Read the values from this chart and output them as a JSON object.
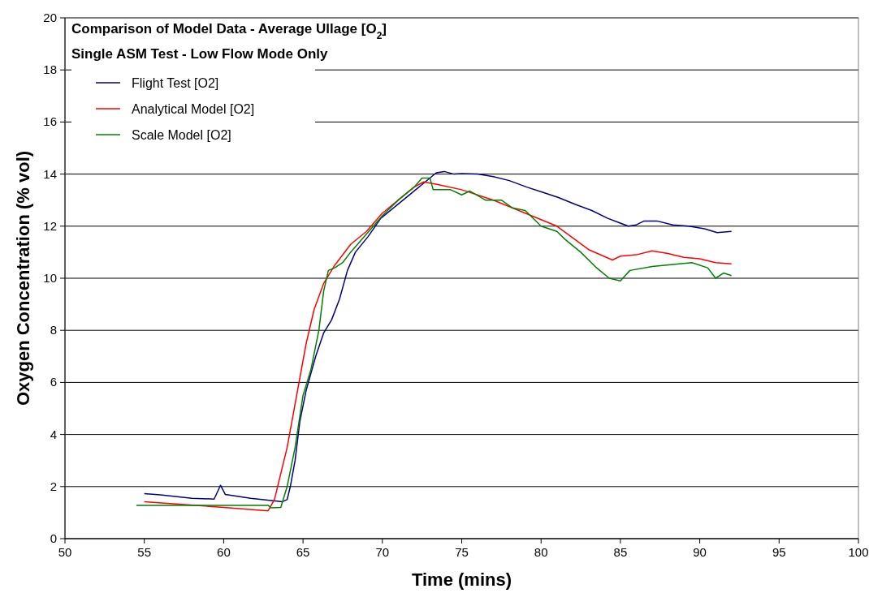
{
  "chart_data": {
    "type": "line",
    "title": "Comparison of Model Data - Average Ullage [O$_{2}$]",
    "subtitle": "Single ASM Test - Low Flow Mode Only",
    "xlabel": "Time (mins)",
    "ylabel": "Oxygen Concentration (% vol)",
    "xlim": [
      50,
      100
    ],
    "xticks": [
      50,
      55,
      60,
      65,
      70,
      75,
      80,
      85,
      90,
      95,
      100
    ],
    "ylim": [
      0,
      20
    ],
    "yticks": [
      0,
      2,
      4,
      6,
      8,
      10,
      12,
      14,
      16,
      18,
      20
    ],
    "grid": "y",
    "legend": "top left",
    "line_style": "solid",
    "marker": "none",
    "series": [
      {
        "name": "Flight Test [O2]",
        "color": "#000080",
        "x": [
          55,
          56,
          58,
          59.4,
          59.8,
          60.1,
          61.7,
          63.7,
          64,
          64.2,
          64.5,
          64.8,
          65.2,
          65.8,
          66.3,
          66.8,
          67.3,
          67.8,
          68.3,
          69.1,
          69.9,
          70.9,
          71.9,
          72.7,
          73.4,
          73.9,
          74.5,
          75,
          76,
          77,
          78,
          79.1,
          80.1,
          81.1,
          82.1,
          83.2,
          84.2,
          85.5,
          86,
          86.5,
          87.3,
          88.3,
          89.3,
          90.3,
          91.1,
          92
        ],
        "values": [
          1.73,
          1.68,
          1.55,
          1.52,
          2.05,
          1.7,
          1.55,
          1.42,
          1.5,
          2,
          3,
          4.5,
          5.7,
          7,
          7.9,
          8.4,
          9.2,
          10.3,
          11,
          11.6,
          12.3,
          12.8,
          13.3,
          13.7,
          14.05,
          14.1,
          14,
          14.02,
          14,
          13.9,
          13.75,
          13.5,
          13.3,
          13.1,
          12.85,
          12.6,
          12.3,
          12,
          12.05,
          12.2,
          12.2,
          12.05,
          12,
          11.9,
          11.75,
          11.8
        ]
      },
      {
        "name": "Analytical Model [O2]",
        "color": "#ff0000",
        "x": [
          55,
          60,
          62.8,
          63.2,
          64,
          64.6,
          65.2,
          65.7,
          66.3,
          67,
          68,
          69,
          70,
          71,
          72,
          72.6,
          73.5,
          75,
          77,
          79,
          81,
          83,
          84.5,
          85,
          86,
          87,
          88,
          89,
          90,
          91,
          92
        ],
        "values": [
          1.42,
          1.2,
          1.07,
          1.5,
          3.5,
          5.5,
          7.5,
          8.8,
          9.8,
          10.5,
          11.3,
          11.8,
          12.5,
          13,
          13.5,
          13.7,
          13.6,
          13.4,
          13,
          12.5,
          12,
          11.1,
          10.7,
          10.85,
          10.9,
          11.05,
          10.95,
          10.8,
          10.75,
          10.6,
          10.55
        ]
      },
      {
        "name": "Scale Model [O2]",
        "color": "#008000",
        "x": [
          54.5,
          62.8,
          63,
          63.6,
          64,
          64.5,
          65,
          65.5,
          66,
          66.3,
          66.6,
          67,
          67.5,
          68,
          69,
          70,
          71,
          72,
          72.5,
          73,
          73.2,
          74.3,
          75,
          75.5,
          76.5,
          77.5,
          78.2,
          79,
          80,
          81,
          81.5,
          82.5,
          83.5,
          84.3,
          85,
          85.6,
          87,
          89.5,
          90.5,
          91,
          91.5,
          92
        ],
        "values": [
          1.28,
          1.28,
          1.18,
          1.2,
          2,
          3.5,
          5.5,
          6.5,
          8,
          9.5,
          10.3,
          10.4,
          10.6,
          11,
          11.7,
          12.4,
          13,
          13.5,
          13.85,
          13.85,
          13.4,
          13.4,
          13.2,
          13.35,
          13,
          13,
          12.7,
          12.6,
          12,
          11.8,
          11.5,
          11,
          10.4,
          10,
          9.9,
          10.3,
          10.45,
          10.6,
          10.4,
          10,
          10.2,
          10.1
        ]
      }
    ]
  }
}
